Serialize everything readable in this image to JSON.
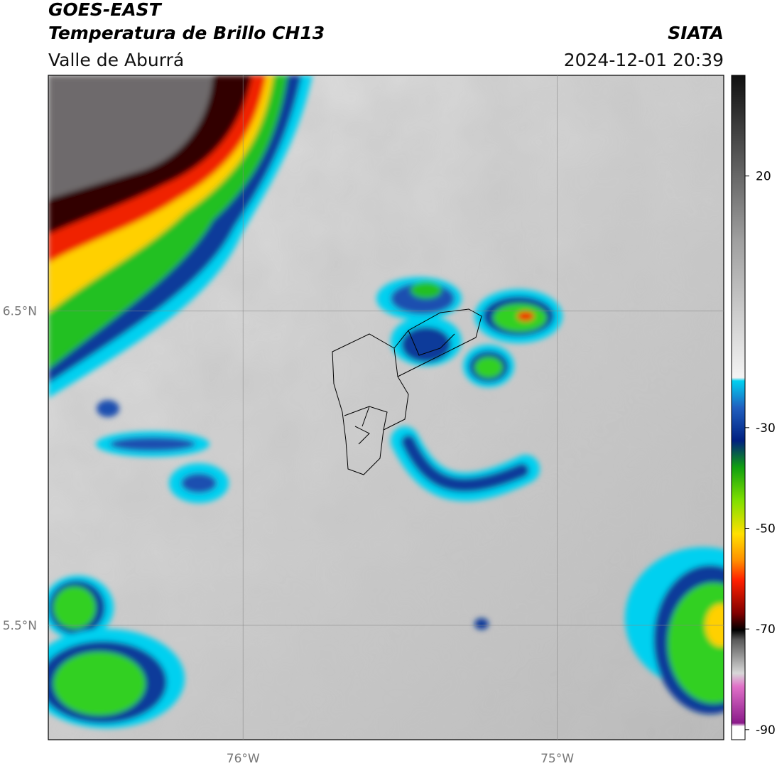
{
  "header": {
    "satellite": "GOES-EAST",
    "product": "Temperatura de Brillo CH13",
    "region": "Valle de Aburrá",
    "source": "SIATA",
    "datetime": "2024-12-01 20:39"
  },
  "map": {
    "xlim": [
      -76.62,
      -74.47
    ],
    "ylim": [
      5.136,
      7.25
    ],
    "xticks": [
      {
        "value": -76,
        "label": "76°W"
      },
      {
        "value": -75,
        "label": "75°W"
      }
    ],
    "yticks": [
      {
        "value": 6.5,
        "label": "6.5°N"
      },
      {
        "value": 5.5,
        "label": "5.5°N"
      }
    ],
    "colorbar": {
      "lim": [
        -92,
        40
      ],
      "ticks": [
        20,
        -30,
        -50,
        -70,
        -90
      ]
    }
  }
}
